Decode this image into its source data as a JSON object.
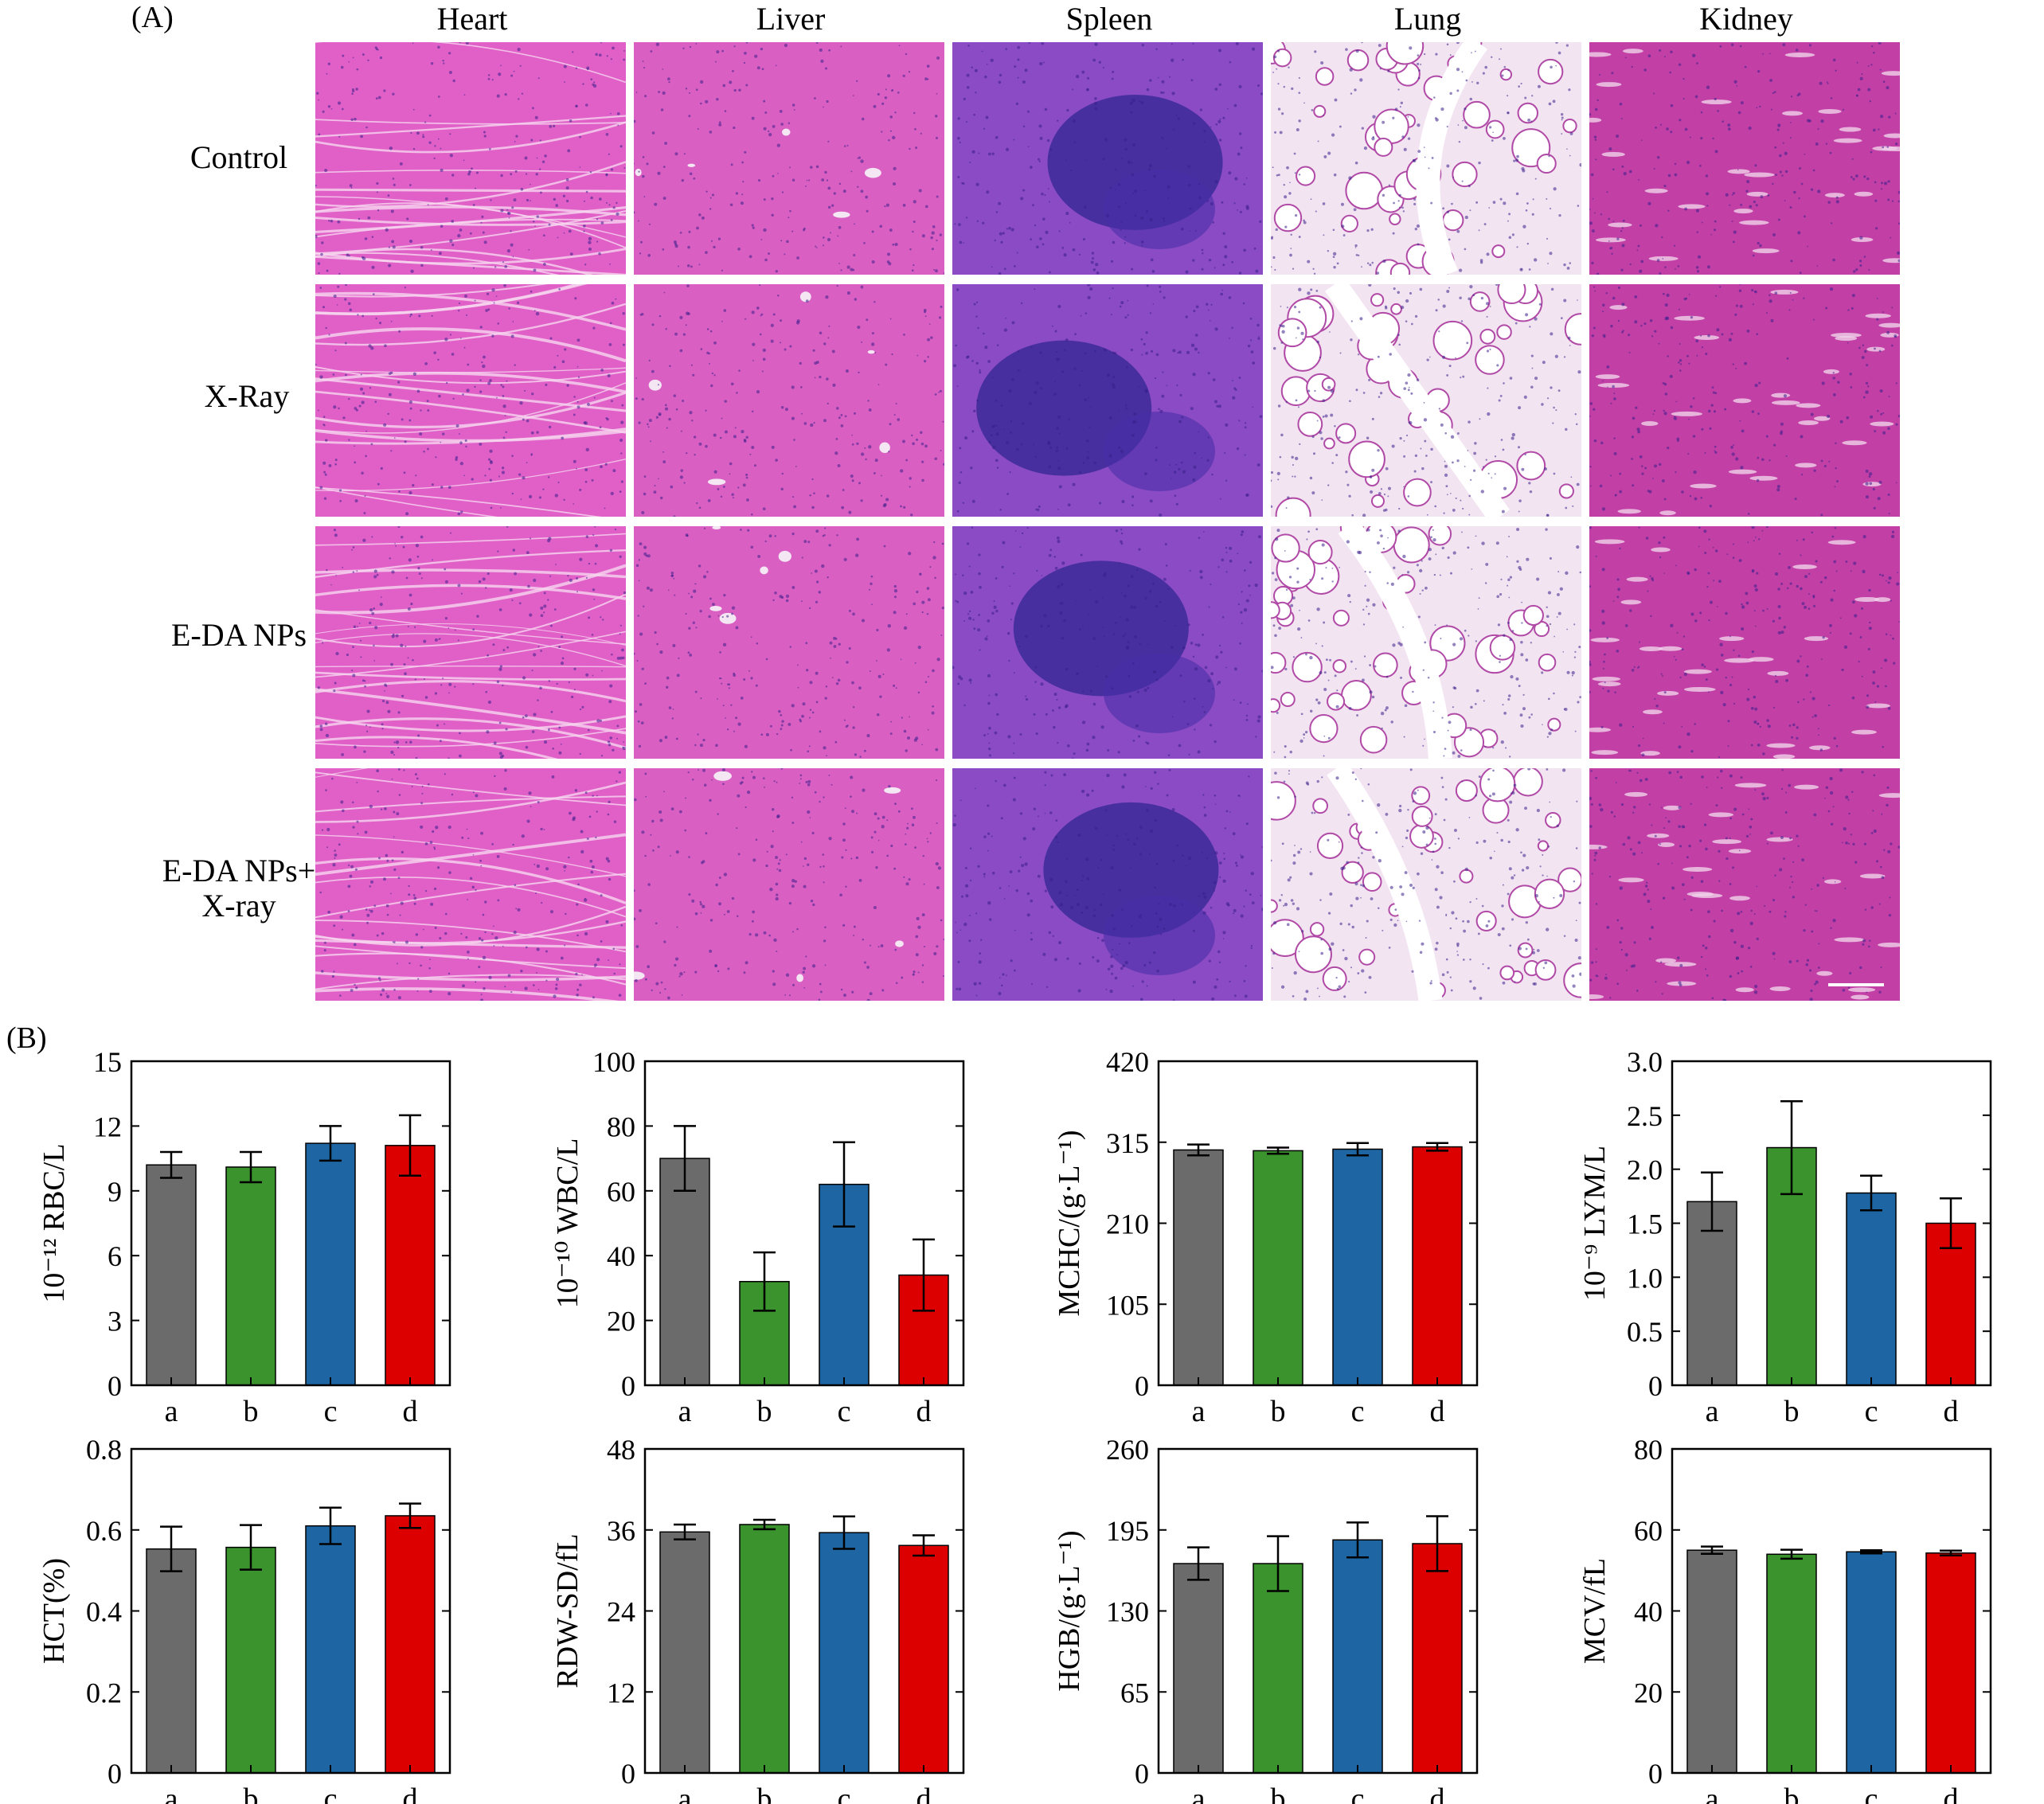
{
  "panel_a": {
    "label": "(A)",
    "columns": [
      "Heart",
      "Liver",
      "Spleen",
      "Lung",
      "Kidney"
    ],
    "rows": [
      {
        "line1": "Control",
        "line2": ""
      },
      {
        "line1": "X-Ray",
        "line2": ""
      },
      {
        "line1": "E-DA NPs",
        "line2": ""
      },
      {
        "line1": "E-DA NPs+",
        "line2": "X-ray"
      }
    ]
  },
  "panel_b": {
    "label": "(B)"
  },
  "colors": {
    "a": "#6b6b6b",
    "b": "#3a932c",
    "c": "#1e66a3",
    "d": "#dd0000"
  },
  "chart_data": [
    {
      "type": "bar",
      "ylabel": "10⁻¹² RBC/L",
      "categories": [
        "a",
        "b",
        "c",
        "d"
      ],
      "values": [
        10.2,
        10.1,
        11.2,
        11.1
      ],
      "errors": [
        0.6,
        0.7,
        0.8,
        1.4
      ],
      "ylim": [
        0,
        15
      ],
      "yticks": [
        "0",
        "3",
        "6",
        "9",
        "12",
        "15"
      ]
    },
    {
      "type": "bar",
      "ylabel": "10⁻¹⁰ WBC/L",
      "categories": [
        "a",
        "b",
        "c",
        "d"
      ],
      "values": [
        70,
        32,
        62,
        34
      ],
      "errors": [
        10,
        9,
        13,
        11
      ],
      "ylim": [
        0,
        100
      ],
      "yticks": [
        "0",
        "20",
        "40",
        "60",
        "80",
        "100"
      ]
    },
    {
      "type": "bar",
      "ylabel": "MCHC/(g·L⁻¹)",
      "categories": [
        "a",
        "b",
        "c",
        "d"
      ],
      "values": [
        305,
        304,
        306,
        309
      ],
      "errors": [
        7,
        4,
        8,
        5
      ],
      "ylim": [
        0,
        420
      ],
      "yticks": [
        "0",
        "105",
        "210",
        "315",
        "420"
      ]
    },
    {
      "type": "bar",
      "ylabel": "10⁻⁹ LYM/L",
      "categories": [
        "a",
        "b",
        "c",
        "d"
      ],
      "values": [
        1.7,
        2.2,
        1.78,
        1.5
      ],
      "errors": [
        0.27,
        0.43,
        0.16,
        0.23
      ],
      "ylim": [
        0,
        3
      ],
      "yticks": [
        "0",
        "0.5",
        "1.0",
        "1.5",
        "2.0",
        "2.5",
        "3.0"
      ]
    },
    {
      "type": "bar",
      "ylabel": "HCT(%)",
      "categories": [
        "a",
        "b",
        "c",
        "d"
      ],
      "values": [
        0.553,
        0.557,
        0.61,
        0.635
      ],
      "errors": [
        0.055,
        0.055,
        0.045,
        0.03
      ],
      "ylim": [
        0,
        0.8
      ],
      "yticks": [
        "0",
        "0.2",
        "0.4",
        "0.6",
        "0.8"
      ]
    },
    {
      "type": "bar",
      "ylabel": "RDW-SD/fL",
      "categories": [
        "a",
        "b",
        "c",
        "d"
      ],
      "values": [
        35.7,
        36.8,
        35.6,
        33.7
      ],
      "errors": [
        1.1,
        0.7,
        2.4,
        1.5
      ],
      "ylim": [
        0,
        48
      ],
      "yticks": [
        "0",
        "12",
        "24",
        "36",
        "48"
      ]
    },
    {
      "type": "bar",
      "ylabel": "HGB/(g·L⁻¹)",
      "categories": [
        "a",
        "b",
        "c",
        "d"
      ],
      "values": [
        168,
        168,
        187,
        184
      ],
      "errors": [
        13,
        22,
        14,
        22
      ],
      "ylim": [
        0,
        260
      ],
      "yticks": [
        "0",
        "65",
        "130",
        "195",
        "260"
      ]
    },
    {
      "type": "bar",
      "ylabel": "MCV/fL",
      "categories": [
        "a",
        "b",
        "c",
        "d"
      ],
      "values": [
        55,
        54,
        54.6,
        54.3
      ],
      "errors": [
        0.9,
        1.1,
        0.4,
        0.6
      ],
      "ylim": [
        0,
        80
      ],
      "yticks": [
        "0",
        "20",
        "40",
        "60",
        "80"
      ]
    }
  ]
}
